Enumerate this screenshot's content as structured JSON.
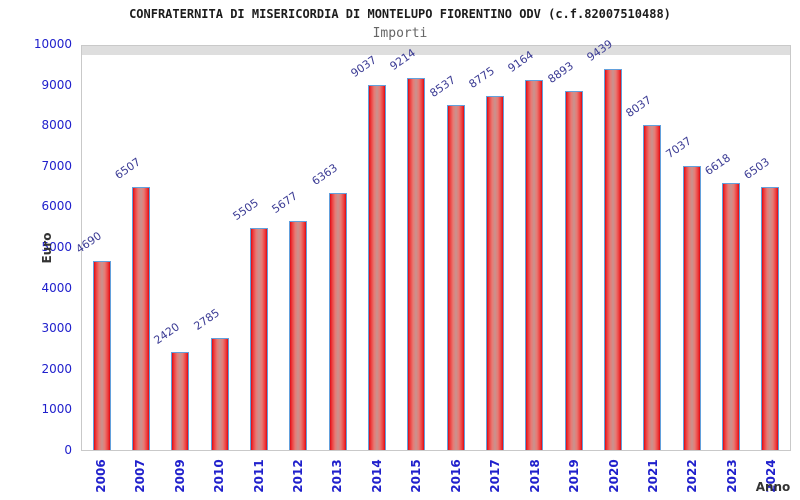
{
  "header": {
    "title": "CONFRATERNITA DI MISERICORDIA DI MONTELUPO FIORENTINO ODV (c.f.82007510488)",
    "subtitle": "Importi"
  },
  "chart_data": {
    "type": "bar",
    "title": "CONFRATERNITA DI MISERICORDIA DI MONTELUPO FIORENTINO ODV (c.f.82007510488)",
    "subtitle": "Importi",
    "xlabel": "Anno",
    "ylabel": "Euro",
    "categories": [
      "2006",
      "2007",
      "2009",
      "2010",
      "2011",
      "2012",
      "2013",
      "2014",
      "2015",
      "2016",
      "2017",
      "2018",
      "2019",
      "2020",
      "2021",
      "2022",
      "2023",
      "2024"
    ],
    "values": [
      4690,
      6507,
      2420,
      2785,
      5505,
      5677,
      6363,
      9037,
      9214,
      8537,
      8775,
      9164,
      8893,
      9439,
      8037,
      7037,
      6618,
      6503
    ],
    "ylim": [
      0,
      10000
    ],
    "yticks": [
      0,
      1000,
      2000,
      3000,
      4000,
      5000,
      6000,
      7000,
      8000,
      9000,
      10000
    ],
    "grid": "horizontal alternating bands, gridline each 1000",
    "legend": "none",
    "value_labels": "above bars, rotated, blue",
    "colors": {
      "bar_fill_edge": "#db0a14",
      "bar_fill_center": "#c9928e",
      "bar_border": "#62a0dc",
      "tick_label": "#2020cc",
      "value_label": "#3b3b94",
      "band_gray": "#f2f2f2",
      "band_white": "#ffffff",
      "gridline": "#dedede",
      "plot_border": "#c9c9c9",
      "title_color": "#1c1c1c",
      "subtitle_color": "#666666",
      "axis_name_color": "#333333"
    }
  }
}
